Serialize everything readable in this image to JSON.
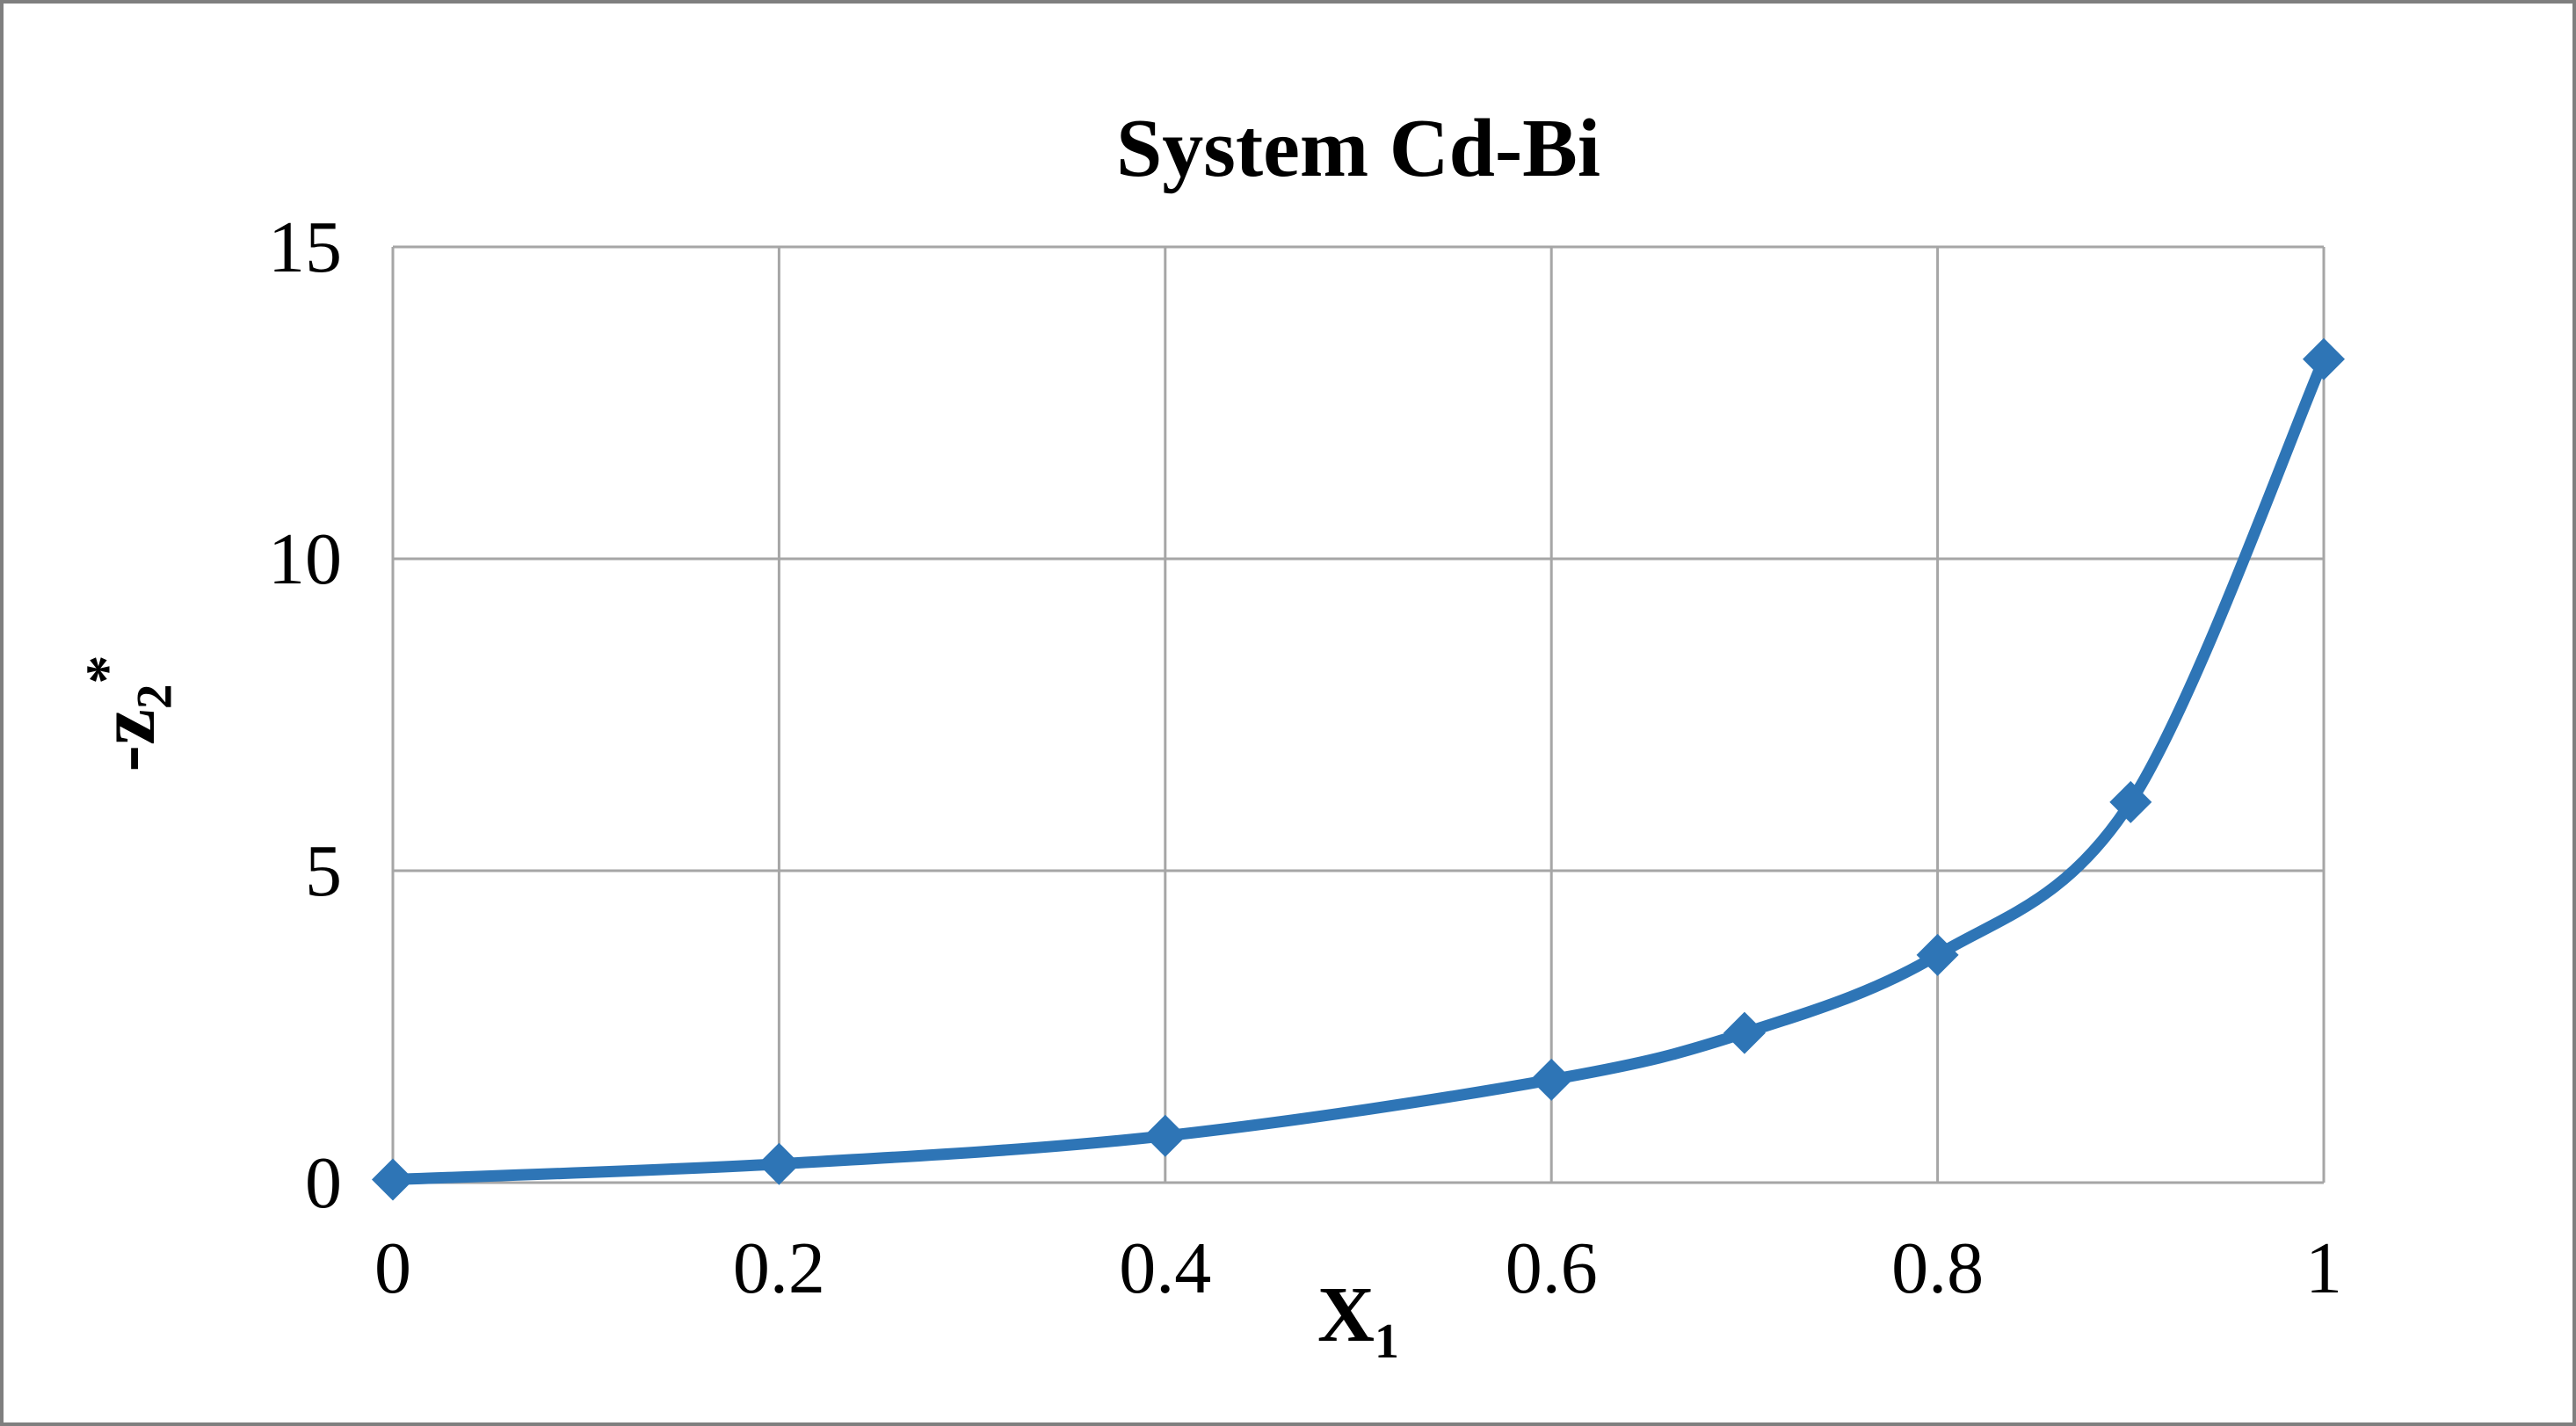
{
  "chart_data": {
    "type": "line",
    "title": "System Cd-Bi",
    "xlabel": "X",
    "xlabel_sub": "1",
    "ylabel": "-z",
    "ylabel_sub": "2",
    "ylabel_sup": "*",
    "x": [
      0,
      0.2,
      0.4,
      0.6,
      0.7,
      0.8,
      0.9,
      1.0
    ],
    "y": [
      0.05,
      0.3,
      0.75,
      1.65,
      2.4,
      3.65,
      6.1,
      13.2
    ],
    "xlim": [
      0,
      1
    ],
    "ylim": [
      0,
      15
    ],
    "x_ticks": [
      0,
      0.2,
      0.4,
      0.6,
      0.8,
      1
    ],
    "x_tick_labels": [
      "0",
      "0.2",
      "0.4",
      "0.6",
      "0.8",
      "1"
    ],
    "y_ticks": [
      0,
      5,
      10,
      15
    ],
    "y_tick_labels": [
      "0",
      "5",
      "10",
      "15"
    ],
    "grid": true,
    "legend": "none",
    "marker": "diamond",
    "line_color": "#2E75B6",
    "grid_color": "#A6A6A6",
    "frame_border_color": "#7F7F7F",
    "background_color": "#FFFFFF"
  }
}
